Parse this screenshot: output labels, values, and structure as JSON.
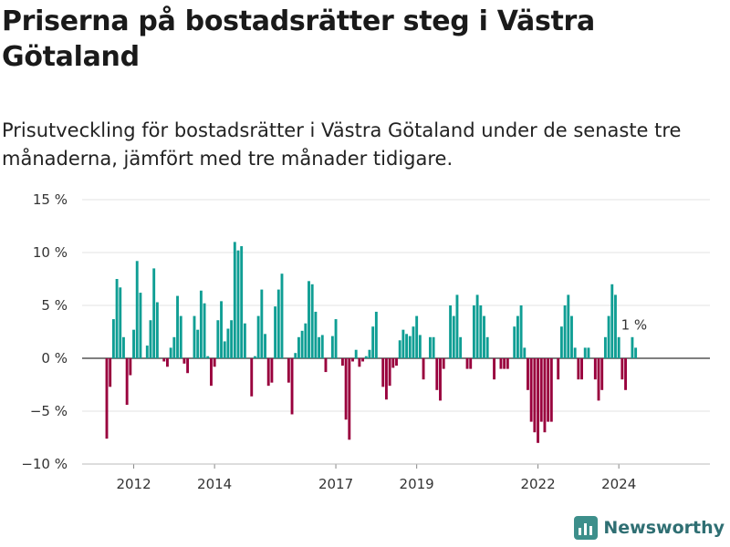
{
  "title": "Priserna på bostadsrätter steg i Västra Götaland",
  "subtitle": "Prisutveckling för bostadsrätter i Västra Götaland under de senaste tre månaderna, jämfört med tre månader tidigare.",
  "brand": {
    "name": "Newsworthy",
    "icon": "bar-chart-logo-icon"
  },
  "colors": {
    "positive": "#0f9e94",
    "negative": "#99003d",
    "grid": "#e3e3e3",
    "brand": "#2f6f73"
  },
  "chart_data": {
    "type": "bar",
    "title": "Priserna på bostadsrätter steg i Västra Götaland",
    "xlabel": "",
    "ylabel": "",
    "ylim": [
      -10,
      15
    ],
    "y_ticks": [
      -10,
      -5,
      0,
      5,
      10,
      15
    ],
    "y_tick_labels": [
      "−10 %",
      "−5 %",
      "0 %",
      "5 %",
      "10 %",
      "15 %"
    ],
    "x_ticks": [
      {
        "index": 8,
        "label": "2012"
      },
      {
        "index": 32,
        "label": "2014"
      },
      {
        "index": 68,
        "label": "2017"
      },
      {
        "index": 92,
        "label": "2019"
      },
      {
        "index": 128,
        "label": "2022"
      },
      {
        "index": 152,
        "label": "2024"
      }
    ],
    "x_range": [
      0,
      172
    ],
    "last_value_label": "1 %",
    "grid": true,
    "values": [
      -7.6,
      -2.7,
      3.7,
      7.5,
      6.7,
      2.0,
      -4.4,
      -1.6,
      2.7,
      9.2,
      6.2,
      0,
      1.2,
      3.6,
      8.5,
      5.3,
      0,
      -0.3,
      -0.8,
      1.0,
      2.0,
      5.9,
      4.0,
      -0.5,
      -1.4,
      0,
      4.0,
      2.7,
      6.4,
      5.2,
      0.2,
      -2.6,
      -0.8,
      3.6,
      5.4,
      1.6,
      2.8,
      3.6,
      11.0,
      10.2,
      10.6,
      3.3,
      0,
      -3.6,
      0.2,
      4.0,
      6.5,
      2.3,
      -2.6,
      -2.3,
      4.9,
      6.5,
      8.0,
      0,
      -2.3,
      -5.3,
      0.5,
      2.0,
      2.6,
      3.3,
      7.3,
      7.0,
      4.4,
      2.0,
      2.2,
      -1.3,
      0,
      2.1,
      3.7,
      0,
      -0.7,
      -5.8,
      -7.7,
      -0.3,
      0.8,
      -0.8,
      -0.3,
      0.2,
      0.8,
      3.0,
      4.4,
      0,
      -2.7,
      -3.9,
      -2.6,
      -0.9,
      -0.7,
      1.7,
      2.7,
      2.3,
      2.1,
      3.0,
      4.0,
      2.2,
      -2.0,
      0,
      2.0,
      2.0,
      -3.0,
      -4.0,
      -1.0,
      0,
      5.0,
      4.0,
      6.0,
      2.0,
      0,
      -1.0,
      -1.0,
      5.0,
      6.0,
      5.0,
      4.0,
      2.0,
      0,
      -2.0,
      0,
      -1.0,
      -1.0,
      -1.0,
      0,
      3.0,
      4.0,
      5.0,
      1.0,
      -3.0,
      -6.0,
      -7.0,
      -8.0,
      -6.0,
      -7.0,
      -6.0,
      -6.0,
      0,
      -2.0,
      3.0,
      5.0,
      6.0,
      4.0,
      1.0,
      -2.0,
      -2.0,
      1.0,
      1.0,
      0,
      -2.0,
      -4.0,
      -3.0,
      2.0,
      4.0,
      7.0,
      6.0,
      2.0,
      -2.0,
      -3.0,
      0,
      2.0,
      1.0
    ]
  }
}
